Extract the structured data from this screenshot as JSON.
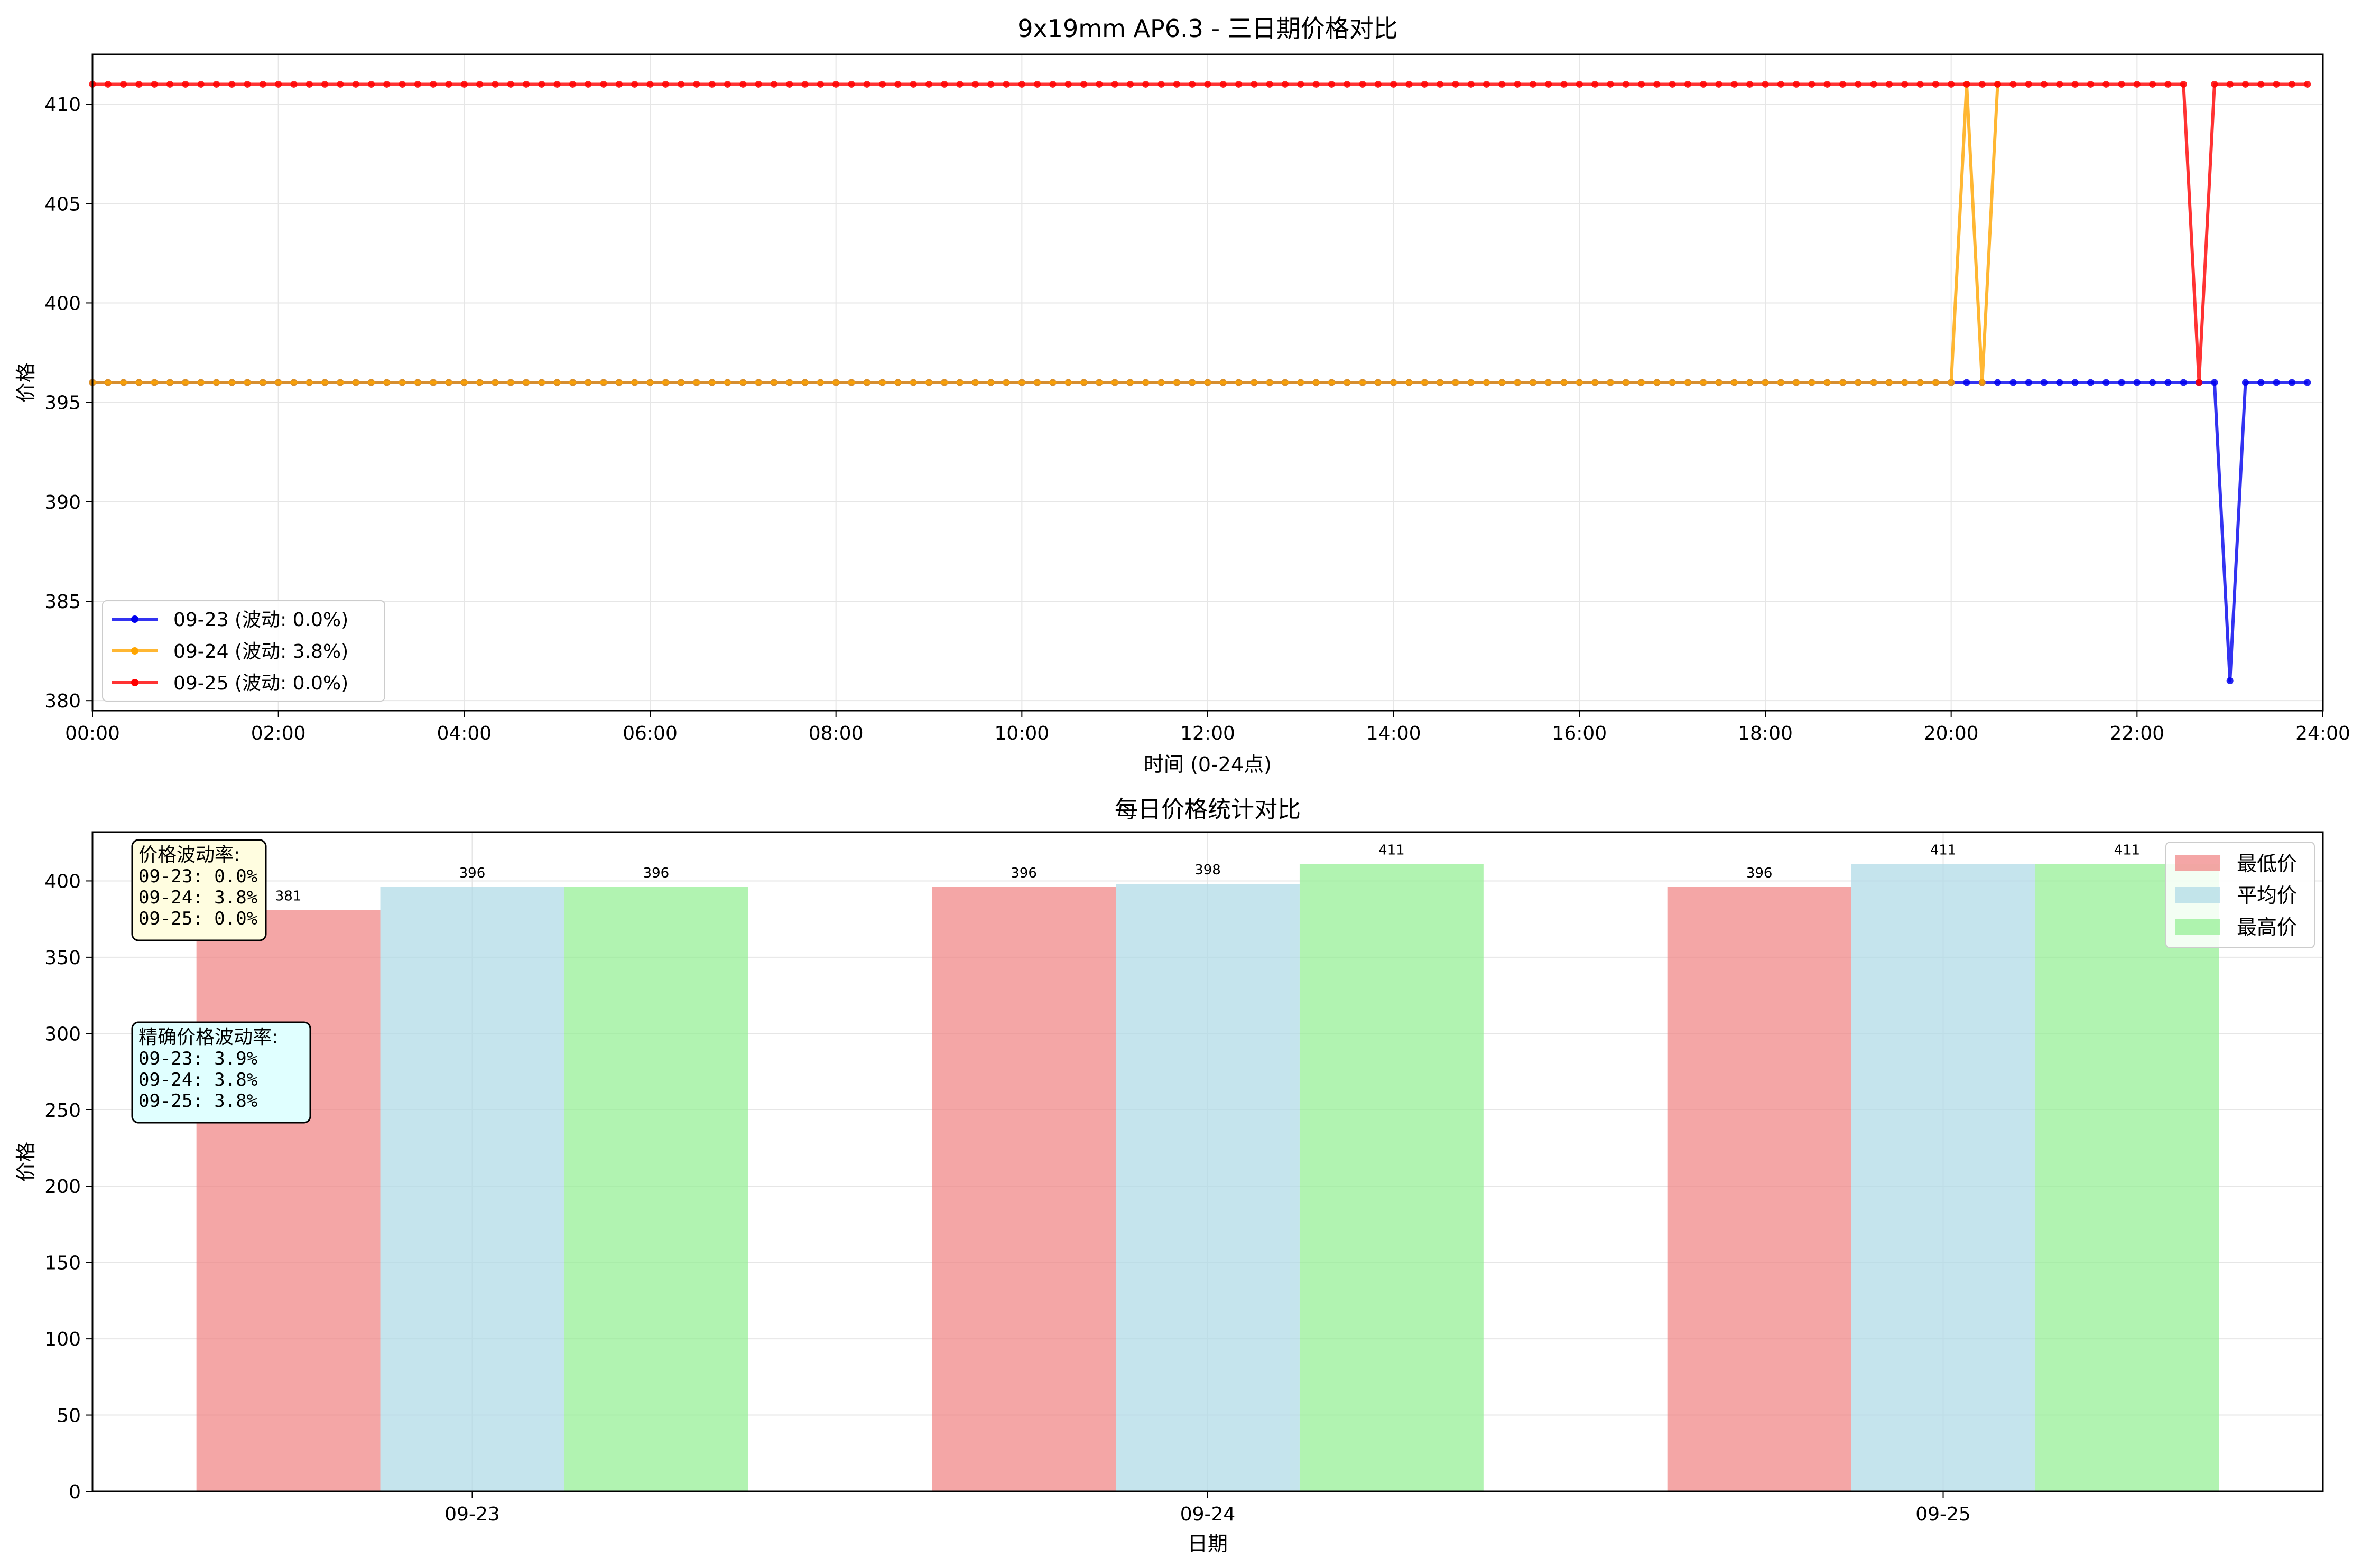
{
  "chart_data": [
    {
      "type": "line",
      "title": "9x19mm AP6.3 - 三日期价格对比",
      "xlabel": "时间 (0-24点)",
      "ylabel": "价格",
      "xlim_hours": [
        0,
        24
      ],
      "ylim": [
        379.5,
        412.5
      ],
      "x_ticks": [
        "00:00",
        "02:00",
        "04:00",
        "06:00",
        "08:00",
        "10:00",
        "12:00",
        "14:00",
        "16:00",
        "18:00",
        "20:00",
        "22:00",
        "24:00"
      ],
      "y_ticks": [
        380,
        385,
        390,
        395,
        400,
        405,
        410
      ],
      "grid": true,
      "legend_placement": "lower-left",
      "sampling_interval_minutes": 10,
      "series": [
        {
          "name": "09-23 (波动: 0.0%)",
          "color": "#0000ee",
          "base_value": 396,
          "overrides": [
            [
              "23:00",
              381
            ]
          ],
          "start": "00:00",
          "end": "23:50"
        },
        {
          "name": "09-24 (波动: 3.8%)",
          "color": "#ffa500",
          "base_value": 396,
          "overrides": [
            [
              "20:10",
              411
            ],
            [
              "20:30",
              411
            ]
          ],
          "start": "00:00",
          "end": "20:30"
        },
        {
          "name": "09-25 (波动: 0.0%)",
          "color": "#ff0000",
          "base_value": 411,
          "overrides": [
            [
              "22:40",
              396
            ]
          ],
          "start": "00:00",
          "end": "23:50"
        }
      ]
    },
    {
      "type": "bar",
      "title": "每日价格统计对比",
      "xlabel": "日期",
      "ylabel": "价格",
      "ylim": [
        0,
        432
      ],
      "y_ticks": [
        0,
        50,
        100,
        150,
        200,
        250,
        300,
        350,
        400
      ],
      "categories": [
        "09-23",
        "09-24",
        "09-25"
      ],
      "grid": true,
      "legend_placement": "top-right",
      "series": [
        {
          "name": "最低价",
          "color": "#f08080",
          "values": [
            381,
            396,
            396
          ]
        },
        {
          "name": "平均价",
          "color": "#add8e6",
          "values": [
            396,
            398,
            411
          ]
        },
        {
          "name": "最高价",
          "color": "#90ee90",
          "values": [
            396,
            411,
            411
          ]
        }
      ],
      "annotations": [
        {
          "title": "价格波动率:",
          "lines": [
            "09-23: 0.0%",
            "09-24: 3.8%",
            "09-25: 0.0%"
          ],
          "background": "#fffde0"
        },
        {
          "title": "精确价格波动率:",
          "lines": [
            "09-23: 3.9%",
            "09-24: 3.8%",
            "09-25: 3.8%"
          ],
          "background": "#e0ffff"
        }
      ]
    }
  ]
}
